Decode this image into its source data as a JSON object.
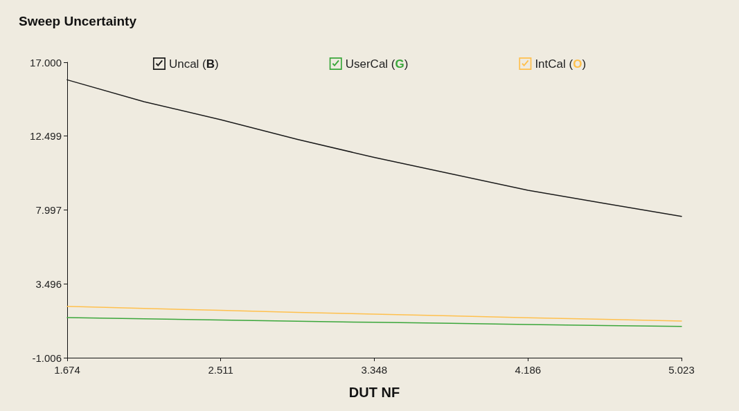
{
  "chart_data": {
    "type": "line",
    "title": "Sweep Uncertainty",
    "xlabel": "DUT NF",
    "x": [
      1.674,
      2.093,
      2.511,
      2.93,
      3.348,
      3.767,
      4.186,
      4.604,
      5.023
    ],
    "series": [
      {
        "name": "Uncal (B)",
        "color": "#1a1a1a",
        "values": [
          15.93,
          14.6,
          13.5,
          12.3,
          11.2,
          10.2,
          9.2,
          8.4,
          7.61
        ]
      },
      {
        "name": "UserCal (G)",
        "color": "#3aa63a",
        "values": [
          1.44,
          1.37,
          1.29,
          1.22,
          1.15,
          1.09,
          1.02,
          0.96,
          0.9
        ]
      },
      {
        "name": "IntCal (O)",
        "color": "#ffc04d",
        "values": [
          2.12,
          2.0,
          1.88,
          1.76,
          1.65,
          1.54,
          1.43,
          1.33,
          1.23
        ]
      }
    ],
    "xlim": [
      1.674,
      5.023
    ],
    "xticks": [
      1.674,
      2.511,
      3.348,
      4.186,
      5.023
    ],
    "ylim": [
      -1.006,
      17
    ],
    "yticks": [
      -1.006,
      3.496,
      7.997,
      12.499,
      {
        "value": 17,
        "label": "17.000"
      }
    ],
    "grid": false,
    "legend": "top",
    "marker": "none",
    "line_style": "solid"
  }
}
